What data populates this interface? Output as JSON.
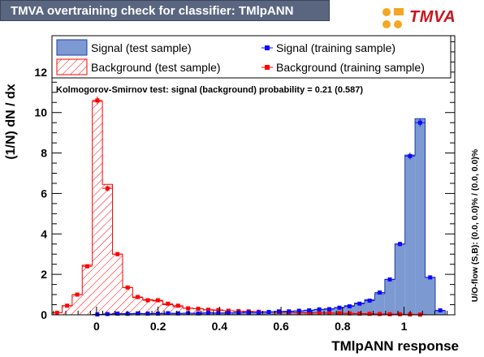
{
  "title": "TMVA overtraining check for classifier: TMlpANN",
  "logo_text": "TMVA",
  "side_label": "U/O-flow (S,B): (0.0, 0.0)% / (0.0, 0.0)%",
  "ks_text": "Kolmogorov-Smirnov test: signal (background) probability =  0.21 (0.587)",
  "colors": {
    "signal_fill": "#7d99d1",
    "signal_line": "#1f3ba8",
    "signal_marker": "#0a0aff",
    "background": "#ff0000",
    "title_bar": "#5a6680"
  },
  "chart_data": {
    "type": "histogram",
    "xlabel": "TMlpANN response",
    "ylabel": "(1/N) dN / dx",
    "xlim": [
      -0.145,
      1.165
    ],
    "ylim": [
      0,
      13.8
    ],
    "x_ticks": [
      "0",
      "0.2",
      "0.4",
      "0.6",
      "0.8",
      "1"
    ],
    "y_ticks": [
      "0",
      "2",
      "4",
      "6",
      "8",
      "10",
      "12"
    ],
    "bin_low": -0.145,
    "bin_width": 0.0328,
    "legend": [
      {
        "label": "Signal (test sample)",
        "style": "filled-blue"
      },
      {
        "label": "Signal (training sample)",
        "style": "blue-marker"
      },
      {
        "label": "Background (test sample)",
        "style": "hatched-red"
      },
      {
        "label": "Background (training sample)",
        "style": "red-marker"
      }
    ],
    "series": [
      {
        "name": "Signal (test sample)",
        "values": [
          0.0,
          0.0,
          0.0,
          0.0,
          0.02,
          0.04,
          0.05,
          0.06,
          0.06,
          0.06,
          0.07,
          0.07,
          0.07,
          0.08,
          0.08,
          0.09,
          0.09,
          0.1,
          0.1,
          0.12,
          0.13,
          0.15,
          0.16,
          0.18,
          0.2,
          0.23,
          0.26,
          0.3,
          0.36,
          0.45,
          0.58,
          0.75,
          1.05,
          1.75,
          3.5,
          7.9,
          9.7,
          1.85,
          0.2,
          0.0
        ]
      },
      {
        "name": "Signal (training sample)",
        "values": [
          0.0,
          0.0,
          0.0,
          0.0,
          0.02,
          0.04,
          0.06,
          0.05,
          0.07,
          0.06,
          0.06,
          0.08,
          0.07,
          0.08,
          0.07,
          0.1,
          0.09,
          0.1,
          0.11,
          0.12,
          0.12,
          0.14,
          0.17,
          0.17,
          0.2,
          0.22,
          0.27,
          0.28,
          0.35,
          0.42,
          0.55,
          0.7,
          1.1,
          1.75,
          3.5,
          7.85,
          9.5,
          1.85,
          0.22,
          0.0
        ]
      },
      {
        "name": "Background (test sample)",
        "values": [
          0.1,
          0.45,
          1.0,
          2.45,
          10.55,
          6.45,
          3.0,
          1.35,
          0.85,
          0.75,
          0.68,
          0.5,
          0.4,
          0.33,
          0.3,
          0.25,
          0.22,
          0.2,
          0.18,
          0.16,
          0.15,
          0.14,
          0.13,
          0.12,
          0.11,
          0.1,
          0.1,
          0.09,
          0.08,
          0.07,
          0.06,
          0.05,
          0.04,
          0.03,
          0.03,
          0.02,
          0.01,
          0.0,
          0.0,
          0.0
        ]
      },
      {
        "name": "Background (training sample)",
        "values": [
          0.1,
          0.45,
          1.0,
          2.4,
          10.6,
          6.25,
          3.0,
          1.35,
          0.88,
          0.72,
          0.72,
          0.55,
          0.45,
          0.32,
          0.3,
          0.25,
          0.24,
          0.2,
          0.18,
          0.17,
          0.15,
          0.14,
          0.14,
          0.12,
          0.11,
          0.1,
          0.1,
          0.09,
          0.08,
          0.07,
          0.06,
          0.05,
          0.04,
          0.03,
          0.03,
          0.02,
          0.01,
          0.0,
          0.0,
          0.0
        ]
      }
    ]
  }
}
